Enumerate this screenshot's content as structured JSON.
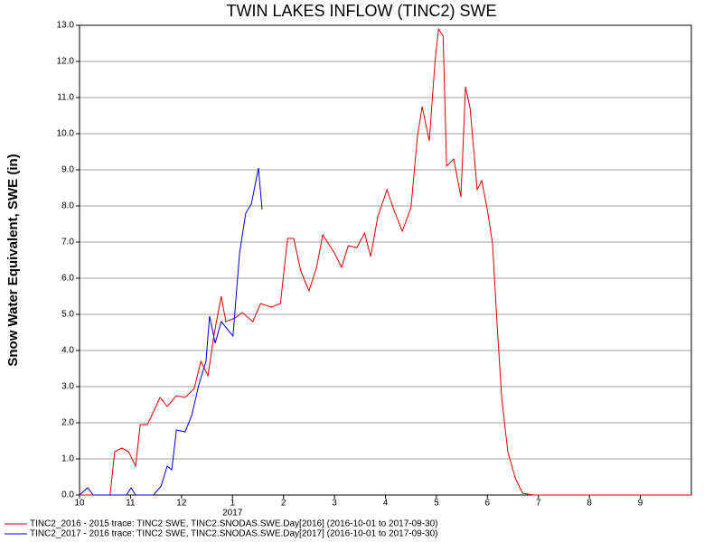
{
  "chart_data": {
    "type": "line",
    "title": "TWIN LAKES INFLOW (TINC2) SWE",
    "y_label": "Snow Water Equivalent, SWE (in)",
    "year_annotation": "2017",
    "xlim": [
      0,
      12
    ],
    "xticks": [
      {
        "value": 0,
        "label": "10"
      },
      {
        "value": 1,
        "label": "11"
      },
      {
        "value": 2,
        "label": "12"
      },
      {
        "value": 3,
        "label": "1"
      },
      {
        "value": 4,
        "label": "2"
      },
      {
        "value": 5,
        "label": "3"
      },
      {
        "value": 6,
        "label": "4"
      },
      {
        "value": 7,
        "label": "5"
      },
      {
        "value": 8,
        "label": "6"
      },
      {
        "value": 9,
        "label": "7"
      },
      {
        "value": 10,
        "label": "8"
      },
      {
        "value": 11,
        "label": "9"
      }
    ],
    "ylim": [
      0,
      13
    ],
    "yticks": [
      {
        "value": 0,
        "label": "0.0"
      },
      {
        "value": 1,
        "label": "1.0"
      },
      {
        "value": 2,
        "label": "2.0"
      },
      {
        "value": 3,
        "label": "3.0"
      },
      {
        "value": 4,
        "label": "4.0"
      },
      {
        "value": 5,
        "label": "5.0"
      },
      {
        "value": 6,
        "label": "6.0"
      },
      {
        "value": 7,
        "label": "7.0"
      },
      {
        "value": 8,
        "label": "8.0"
      },
      {
        "value": 9,
        "label": "9.0"
      },
      {
        "value": 10,
        "label": "10.0"
      },
      {
        "value": 11,
        "label": "11.0"
      },
      {
        "value": 12,
        "label": "12.0"
      },
      {
        "value": 13,
        "label": "13.0"
      }
    ],
    "grid": true,
    "series": [
      {
        "name": "TINC2_2016 - 2015 trace: TINC2 SWE, TINC2.SNODAS.SWE.Day[2016] (2016-10-01 to 2017-09-30)",
        "color": "#e00000",
        "x": [
          0,
          0.6,
          0.69,
          0.83,
          0.96,
          1.1,
          1.19,
          1.33,
          1.45,
          1.58,
          1.72,
          1.9,
          2.07,
          2.25,
          2.38,
          2.52,
          2.64,
          2.78,
          2.87,
          3.05,
          3.19,
          3.4,
          3.55,
          3.76,
          3.94,
          4.08,
          4.2,
          4.34,
          4.5,
          4.65,
          4.77,
          5.0,
          5.14,
          5.27,
          5.44,
          5.59,
          5.71,
          5.85,
          6.03,
          6.15,
          6.33,
          6.5,
          6.63,
          6.72,
          6.86,
          6.97,
          7.04,
          7.13,
          7.2,
          7.34,
          7.48,
          7.57,
          7.66,
          7.8,
          7.89,
          8.01,
          8.1,
          8.19,
          8.28,
          8.4,
          8.55,
          8.69,
          8.9,
          12
        ],
        "values": [
          0,
          0,
          1.2,
          1.3,
          1.2,
          0.8,
          1.95,
          1.95,
          2.3,
          2.7,
          2.45,
          2.75,
          2.7,
          2.95,
          3.7,
          3.3,
          4.45,
          5.5,
          4.8,
          4.9,
          5.05,
          4.8,
          5.3,
          5.2,
          5.3,
          7.1,
          7.1,
          6.2,
          5.65,
          6.3,
          7.2,
          6.7,
          6.3,
          6.9,
          6.85,
          7.25,
          6.6,
          7.7,
          8.45,
          7.95,
          7.3,
          7.95,
          9.95,
          10.75,
          9.8,
          11.95,
          12.9,
          12.7,
          9.1,
          9.3,
          8.25,
          11.3,
          10.7,
          8.45,
          8.7,
          7.8,
          6.95,
          4.7,
          2.7,
          1.2,
          0.45,
          0.05,
          0,
          0
        ]
      },
      {
        "name": "TINC2_2017 - 2016 trace: TINC2 SWE, TINC2.SNODAS.SWE.Day[2017] (2016-10-01 to 2017-09-30)",
        "color": "#0000d0",
        "x": [
          0,
          0.16,
          0.27,
          0.92,
          1.01,
          1.1,
          1.45,
          1.6,
          1.72,
          1.81,
          1.9,
          2.07,
          2.2,
          2.34,
          2.48,
          2.55,
          2.66,
          2.78,
          3.01,
          3.14,
          3.26,
          3.37,
          3.51,
          3.58
        ],
        "values": [
          0,
          0.2,
          0,
          0,
          0.2,
          0,
          0,
          0.25,
          0.8,
          0.7,
          1.8,
          1.75,
          2.2,
          3.05,
          3.7,
          4.95,
          4.2,
          4.8,
          4.4,
          6.7,
          7.8,
          8.05,
          9.05,
          7.9
        ]
      }
    ]
  }
}
